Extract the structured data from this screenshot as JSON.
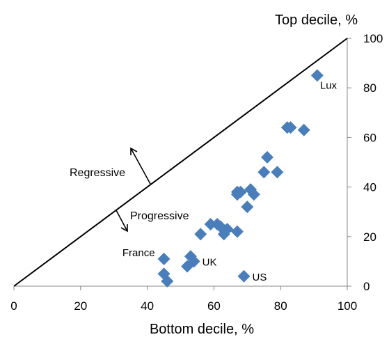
{
  "chart_data": {
    "type": "scatter",
    "title": "",
    "xlabel": "Bottom decile, %",
    "ylabel": "Top decile, %",
    "xlim": [
      0,
      100
    ],
    "ylim": [
      0,
      100
    ],
    "x_ticks": [
      "0",
      "20",
      "40",
      "60",
      "80",
      "100"
    ],
    "y_ticks": [
      "0",
      "20",
      "40",
      "60",
      "80",
      "100"
    ],
    "y_axis_position": "right",
    "grid": false,
    "legend": "none",
    "marker": "diamond",
    "marker_color": "#4a7ebb",
    "reference_line": {
      "from": [
        0,
        0
      ],
      "to": [
        100,
        100
      ]
    },
    "annotations": {
      "regressive": "Regressive",
      "progressive": "Progressive"
    },
    "series": [
      {
        "points": [
          {
            "x": 91,
            "y": 85,
            "label": "Lux"
          },
          {
            "x": 82,
            "y": 64
          },
          {
            "x": 83,
            "y": 64
          },
          {
            "x": 87,
            "y": 63
          },
          {
            "x": 76,
            "y": 52
          },
          {
            "x": 75,
            "y": 46
          },
          {
            "x": 79,
            "y": 46
          },
          {
            "x": 67,
            "y": 38
          },
          {
            "x": 68,
            "y": 38
          },
          {
            "x": 71,
            "y": 39
          },
          {
            "x": 67,
            "y": 37
          },
          {
            "x": 72,
            "y": 37
          },
          {
            "x": 70,
            "y": 32
          },
          {
            "x": 59,
            "y": 25
          },
          {
            "x": 61,
            "y": 25
          },
          {
            "x": 62,
            "y": 24
          },
          {
            "x": 64,
            "y": 23
          },
          {
            "x": 63,
            "y": 21
          },
          {
            "x": 56,
            "y": 21
          },
          {
            "x": 67,
            "y": 22
          },
          {
            "x": 45,
            "y": 11,
            "label": "France"
          },
          {
            "x": 53,
            "y": 12
          },
          {
            "x": 54,
            "y": 10,
            "label": "UK"
          },
          {
            "x": 52,
            "y": 8
          },
          {
            "x": 45,
            "y": 5
          },
          {
            "x": 46,
            "y": 2
          },
          {
            "x": 69,
            "y": 4,
            "label": "US"
          }
        ]
      }
    ]
  }
}
